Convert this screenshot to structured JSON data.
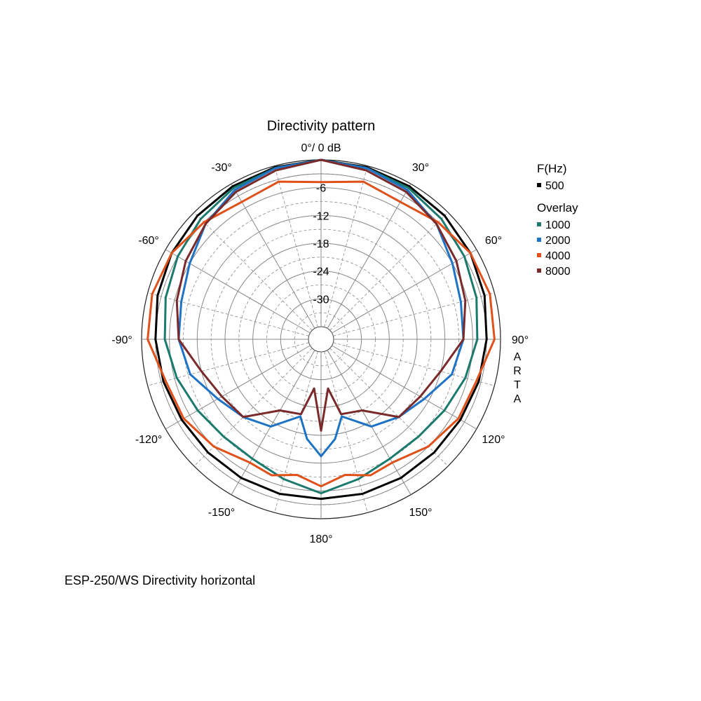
{
  "caption": "ESP-250/WS  Directivity horizontal",
  "chart_data": {
    "type": "polar",
    "title": "Directivity pattern",
    "top_label": "0°/ 0 dB",
    "angle_labels": [
      "-30°",
      "30°",
      "-60°",
      "60°",
      "-90°",
      "90°",
      "-120°",
      "120°",
      "-150°",
      "150°",
      "180°"
    ],
    "radial_labels": [
      "-6",
      "-12",
      "-18",
      "-24",
      "-30"
    ],
    "radial_range_db": [
      -36,
      0
    ],
    "watermark": "ARTA",
    "legend": {
      "header": "F(Hz)",
      "overlay_header": "Overlay",
      "entries": [
        {
          "label": "500",
          "color": "#000000"
        },
        {
          "label": "1000",
          "color": "#1a7a6e"
        },
        {
          "label": "2000",
          "color": "#1e73c4"
        },
        {
          "label": "4000",
          "color": "#e0501a"
        },
        {
          "label": "8000",
          "color": "#7a2a2a"
        }
      ]
    },
    "series": [
      {
        "name": "500",
        "color": "#000000",
        "angles": [
          0,
          15,
          30,
          45,
          60,
          75,
          90,
          105,
          120,
          135,
          150,
          165,
          180
        ],
        "db": [
          0,
          -0.3,
          -0.6,
          -1.0,
          -1.5,
          -2.2,
          -3.0,
          -3.5,
          -4.0,
          -4.2,
          -4.2,
          -4.2,
          -4.3
        ]
      },
      {
        "name": "1000",
        "color": "#1a7a6e",
        "angles": [
          0,
          15,
          30,
          45,
          60,
          75,
          90,
          105,
          120,
          135,
          150,
          165,
          180
        ],
        "db": [
          0,
          -0.5,
          -1.0,
          -2.0,
          -3.0,
          -4.0,
          -5.0,
          -6.5,
          -8.0,
          -9.0,
          -9.0,
          -7.5,
          -5.5
        ]
      },
      {
        "name": "2000",
        "color": "#1e73c4",
        "angles": [
          0,
          15,
          30,
          45,
          60,
          75,
          90,
          105,
          120,
          135,
          150,
          165,
          172,
          180
        ],
        "db": [
          0,
          -0.5,
          -1.5,
          -3.5,
          -6.0,
          -7.5,
          -8.0,
          -9.5,
          -13.0,
          -15.0,
          -17.0,
          -21.5,
          -17.0,
          -13.5
        ]
      },
      {
        "name": "4000",
        "color": "#e0501a",
        "angles": [
          0,
          15,
          30,
          45,
          60,
          75,
          90,
          105,
          120,
          135,
          150,
          160,
          170,
          180
        ],
        "db": [
          -4.8,
          -3.5,
          -4.5,
          -3.0,
          -1.5,
          -1.0,
          -1.3,
          -4.0,
          -4.5,
          -6.0,
          -8.0,
          -7.5,
          -9.0,
          -7.0
        ]
      },
      {
        "name": "8000",
        "color": "#7a2a2a",
        "angles": [
          0,
          15,
          30,
          45,
          60,
          75,
          90,
          105,
          120,
          135,
          150,
          165,
          172,
          180
        ],
        "db": [
          0,
          -1.0,
          -2.0,
          -3.5,
          -5.0,
          -6.5,
          -8.0,
          -12.0,
          -14.0,
          -15.0,
          -21.0,
          -22.0,
          -28.0,
          -19.0
        ]
      }
    ]
  }
}
